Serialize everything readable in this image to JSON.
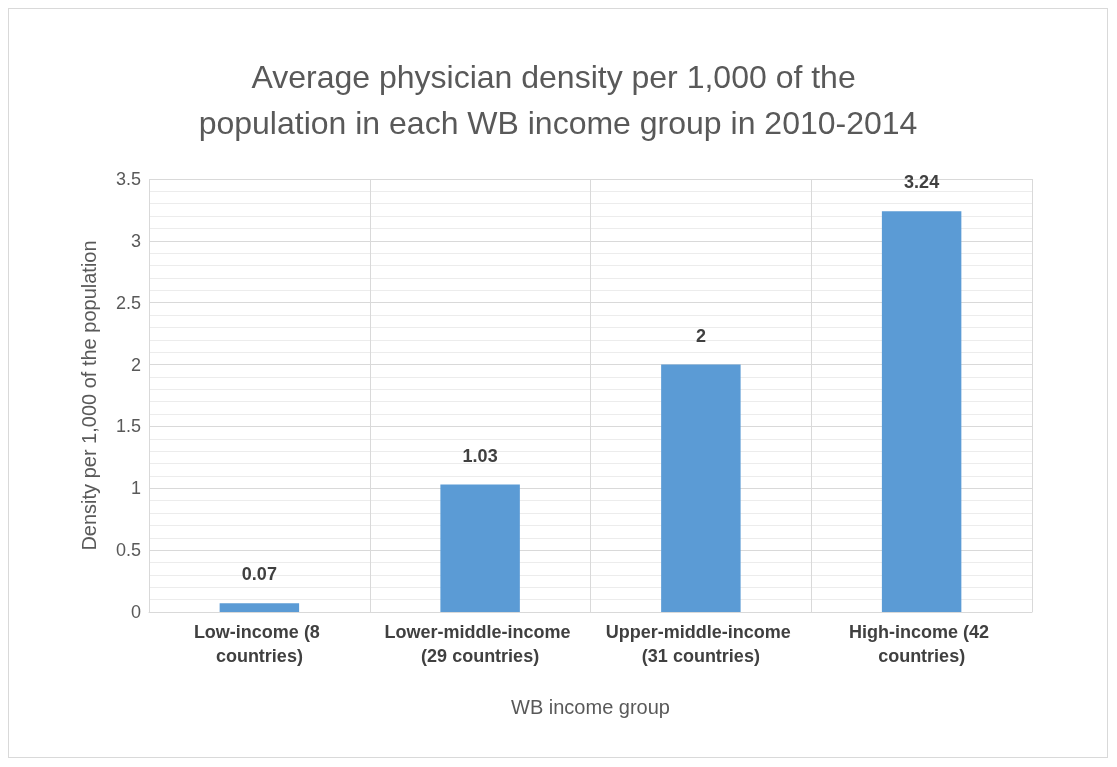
{
  "chart_data": {
    "type": "bar",
    "title": "Average physician density per 1,000 of the population in each WB income group in 2010-2014",
    "xlabel": "WB income group",
    "ylabel": "Density per 1,000 of the population",
    "categories": [
      "Low-income (8 countries)",
      "Lower-middle-income (29 countries)",
      "Upper-middle-income (31 countries)",
      "High-income (42 countries)"
    ],
    "values": [
      0.07,
      1.03,
      2,
      3.24
    ],
    "color": "#5b9bd5",
    "ylim": [
      0,
      3.5
    ],
    "yticks": [
      0,
      0.5,
      1,
      1.5,
      2,
      2.5,
      3,
      3.5
    ],
    "grid": true,
    "data_labels": true
  }
}
